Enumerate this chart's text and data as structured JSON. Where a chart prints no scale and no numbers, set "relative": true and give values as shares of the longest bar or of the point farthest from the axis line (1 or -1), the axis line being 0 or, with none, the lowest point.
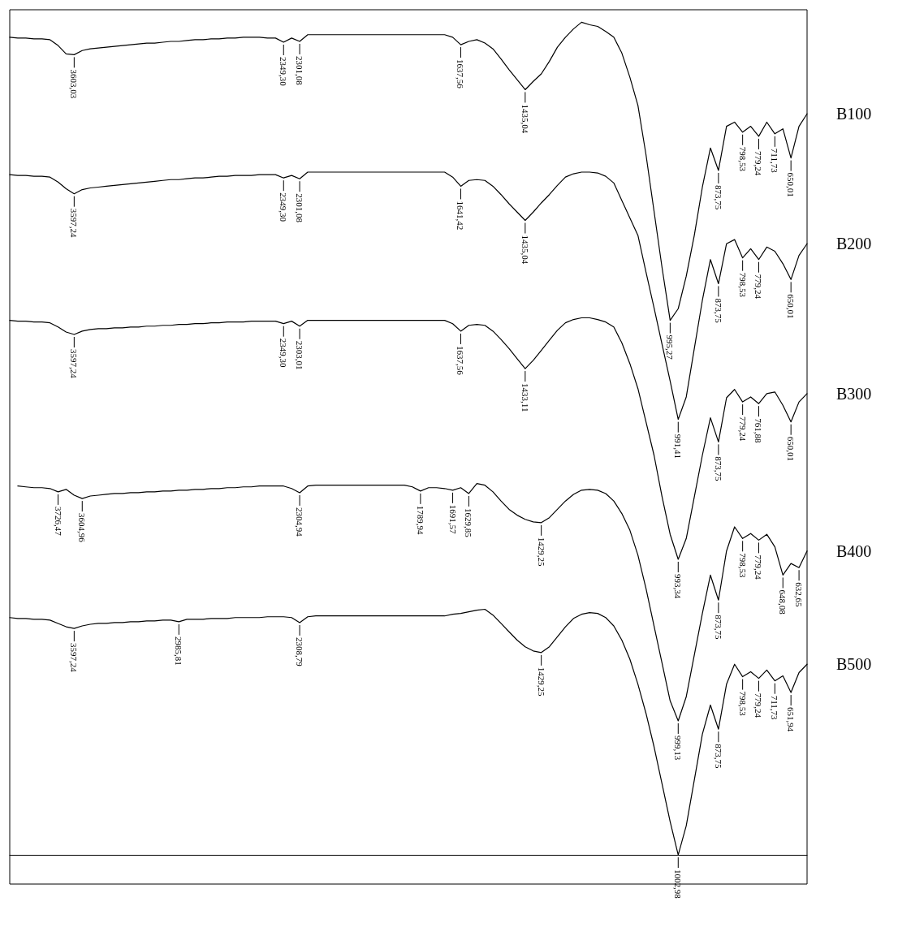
{
  "chart_data": {
    "type": "line",
    "relative": true,
    "tick_labels": false,
    "marker": "none",
    "categories": [
      null,
      null,
      null,
      null,
      null,
      null,
      null,
      null,
      null,
      null,
      null,
      null,
      null,
      null,
      null,
      null,
      null,
      null,
      null,
      null,
      null,
      null,
      null,
      null,
      null,
      null,
      null,
      null,
      null,
      null,
      null,
      null,
      null,
      null,
      null,
      null,
      null,
      null,
      null,
      null,
      null,
      null,
      null,
      null,
      null,
      null,
      null,
      null,
      null,
      null,
      null,
      null,
      null,
      null,
      null,
      null,
      null,
      null,
      null,
      null,
      null,
      null,
      null,
      null,
      null,
      null,
      null,
      null,
      null,
      null,
      null,
      null,
      null,
      null,
      null,
      null,
      null,
      null,
      null,
      null,
      null,
      null,
      null,
      null,
      null,
      null,
      null,
      null,
      null,
      null,
      null,
      null,
      null,
      null,
      null,
      null,
      null,
      null,
      null,
      null
    ],
    "series": [
      {
        "name": "B100",
        "color": "#000000",
        "values": [
          0.982,
          0.981,
          0.981,
          0.98,
          0.98,
          0.979,
          0.972,
          0.962,
          0.961,
          0.966,
          0.968,
          0.969,
          0.97,
          0.971,
          0.972,
          0.973,
          0.974,
          0.975,
          0.975,
          0.976,
          0.977,
          0.977,
          0.978,
          0.979,
          0.979,
          0.98,
          0.98,
          0.981,
          0.981,
          0.982,
          0.982,
          0.982,
          0.981,
          0.981,
          0.976,
          0.981,
          0.977,
          0.985,
          0.985,
          0.985,
          0.985,
          0.985,
          0.985,
          0.985,
          0.985,
          0.985,
          0.985,
          0.985,
          0.985,
          0.985,
          0.985,
          0.985,
          0.985,
          0.985,
          0.985,
          0.982,
          0.973,
          0.977,
          0.979,
          0.975,
          0.968,
          0.956,
          0.943,
          0.931,
          0.919,
          0.929,
          0.938,
          0.953,
          0.97,
          0.982,
          0.992,
          1,
          0.997,
          0.995,
          0.989,
          0.982,
          0.963,
          0.934,
          0.9,
          0.841,
          0.773,
          0.705,
          0.642,
          0.656,
          0.695,
          0.744,
          0.802,
          0.849,
          0.822,
          0.875,
          0.88,
          0.868,
          0.875,
          0.863,
          0.88,
          0.866,
          0.872,
          0.837,
          0.875,
          0.89
        ]
      },
      {
        "name": "B200",
        "color": "#000000",
        "values": [
          0.817,
          0.816,
          0.816,
          0.815,
          0.815,
          0.814,
          0.808,
          0.8,
          0.794,
          0.799,
          0.801,
          0.802,
          0.803,
          0.804,
          0.805,
          0.806,
          0.807,
          0.808,
          0.809,
          0.81,
          0.811,
          0.811,
          0.812,
          0.813,
          0.813,
          0.814,
          0.815,
          0.815,
          0.816,
          0.816,
          0.816,
          0.817,
          0.817,
          0.817,
          0.813,
          0.816,
          0.812,
          0.82,
          0.82,
          0.82,
          0.82,
          0.82,
          0.82,
          0.82,
          0.82,
          0.82,
          0.82,
          0.82,
          0.82,
          0.82,
          0.82,
          0.82,
          0.82,
          0.82,
          0.82,
          0.814,
          0.803,
          0.81,
          0.811,
          0.81,
          0.803,
          0.793,
          0.782,
          0.772,
          0.762,
          0.772,
          0.783,
          0.793,
          0.804,
          0.814,
          0.818,
          0.82,
          0.82,
          0.819,
          0.815,
          0.807,
          0.786,
          0.765,
          0.744,
          0.7,
          0.657,
          0.613,
          0.569,
          0.523,
          0.55,
          0.608,
          0.666,
          0.715,
          0.686,
          0.734,
          0.739,
          0.717,
          0.728,
          0.715,
          0.73,
          0.725,
          0.71,
          0.691,
          0.72,
          0.734
        ]
      },
      {
        "name": "B300",
        "color": "#000000",
        "values": [
          0.642,
          0.641,
          0.641,
          0.64,
          0.64,
          0.639,
          0.634,
          0.628,
          0.625,
          0.629,
          0.631,
          0.632,
          0.632,
          0.633,
          0.633,
          0.634,
          0.634,
          0.635,
          0.635,
          0.636,
          0.636,
          0.637,
          0.637,
          0.638,
          0.638,
          0.639,
          0.639,
          0.64,
          0.64,
          0.64,
          0.641,
          0.641,
          0.641,
          0.641,
          0.638,
          0.641,
          0.635,
          0.642,
          0.642,
          0.642,
          0.642,
          0.642,
          0.642,
          0.642,
          0.642,
          0.642,
          0.642,
          0.642,
          0.642,
          0.642,
          0.642,
          0.642,
          0.642,
          0.642,
          0.642,
          0.638,
          0.629,
          0.636,
          0.637,
          0.636,
          0.629,
          0.619,
          0.608,
          0.596,
          0.584,
          0.594,
          0.606,
          0.618,
          0.63,
          0.639,
          0.643,
          0.645,
          0.645,
          0.643,
          0.64,
          0.634,
          0.615,
          0.59,
          0.56,
          0.52,
          0.48,
          0.43,
          0.385,
          0.355,
          0.38,
          0.43,
          0.48,
          0.525,
          0.496,
          0.549,
          0.559,
          0.544,
          0.55,
          0.542,
          0.554,
          0.556,
          0.54,
          0.52,
          0.544,
          0.554
        ]
      },
      {
        "name": "B400",
        "color": "#000000",
        "values": [
          null,
          0.443,
          0.442,
          0.441,
          0.441,
          0.44,
          0.436,
          0.439,
          0.432,
          0.428,
          0.431,
          0.432,
          0.433,
          0.434,
          0.434,
          0.435,
          0.435,
          0.436,
          0.436,
          0.437,
          0.437,
          0.438,
          0.438,
          0.439,
          0.439,
          0.44,
          0.44,
          0.441,
          0.441,
          0.442,
          0.442,
          0.443,
          0.443,
          0.443,
          0.443,
          0.44,
          0.435,
          0.443,
          0.444,
          0.444,
          0.444,
          0.444,
          0.444,
          0.444,
          0.444,
          0.444,
          0.444,
          0.444,
          0.444,
          0.444,
          0.442,
          0.437,
          0.441,
          0.441,
          0.44,
          0.438,
          0.441,
          0.434,
          0.446,
          0.444,
          0.436,
          0.425,
          0.415,
          0.408,
          0.403,
          0.4,
          0.399,
          0.405,
          0.415,
          0.425,
          0.433,
          0.438,
          0.439,
          0.438,
          0.434,
          0.425,
          0.41,
          0.39,
          0.36,
          0.32,
          0.275,
          0.23,
          0.185,
          0.161,
          0.19,
          0.24,
          0.29,
          0.336,
          0.306,
          0.365,
          0.394,
          0.38,
          0.386,
          0.378,
          0.385,
          0.37,
          0.336,
          0.35,
          0.345,
          0.365
        ]
      },
      {
        "name": "B500",
        "color": "#000000",
        "values": [
          0.285,
          0.284,
          0.284,
          0.283,
          0.283,
          0.282,
          0.278,
          0.274,
          0.272,
          0.275,
          0.277,
          0.278,
          0.278,
          0.279,
          0.279,
          0.28,
          0.28,
          0.281,
          0.281,
          0.282,
          0.282,
          0.28,
          0.283,
          0.283,
          0.283,
          0.284,
          0.284,
          0.284,
          0.285,
          0.285,
          0.285,
          0.285,
          0.286,
          0.286,
          0.286,
          0.285,
          0.279,
          0.286,
          0.287,
          0.287,
          0.287,
          0.287,
          0.287,
          0.287,
          0.287,
          0.287,
          0.287,
          0.287,
          0.287,
          0.287,
          0.287,
          0.287,
          0.287,
          0.287,
          0.287,
          0.289,
          0.29,
          0.292,
          0.294,
          0.295,
          0.288,
          0.278,
          0.268,
          0.258,
          0.25,
          0.245,
          0.243,
          0.25,
          0.262,
          0.274,
          0.284,
          0.289,
          0.291,
          0.29,
          0.285,
          0.275,
          0.258,
          0.235,
          0.205,
          0.17,
          0.13,
          0.085,
          0.04,
          0,
          0.035,
          0.09,
          0.145,
          0.18,
          0.151,
          0.205,
          0.229,
          0.214,
          0.22,
          0.212,
          0.222,
          0.209,
          0.215,
          0.195,
          0.219,
          0.229
        ]
      }
    ],
    "annotations": [
      {
        "text": "3603,03",
        "y": 0.961
      },
      {
        "text": "2349,30",
        "y": 0.976
      },
      {
        "text": "2301,08",
        "y": 0.977
      },
      {
        "text": "1637,56",
        "y": 0.973
      },
      {
        "text": "1435,04",
        "y": 0.919
      },
      {
        "text": "995,27",
        "y": 0.642
      },
      {
        "text": "873,75",
        "y": 0.822
      },
      {
        "text": "798,53",
        "y": 0.868
      },
      {
        "text": "779,24",
        "y": 0.863
      },
      {
        "text": "711,73",
        "y": 0.866
      },
      {
        "text": "650,01",
        "y": 0.837
      },
      {
        "text": "3597,24",
        "y": 0.794
      },
      {
        "text": "2349,30",
        "y": 0.813
      },
      {
        "text": "2301,08",
        "y": 0.812
      },
      {
        "text": "1641,42",
        "y": 0.803
      },
      {
        "text": "1435,04",
        "y": 0.762
      },
      {
        "text": "991,41",
        "y": 0.523
      },
      {
        "text": "873,75",
        "y": 0.686
      },
      {
        "text": "798,53",
        "y": 0.717
      },
      {
        "text": "779,24",
        "y": 0.715
      },
      {
        "text": "650,01",
        "y": 0.691
      },
      {
        "text": "3597,24",
        "y": 0.625
      },
      {
        "text": "2349,30",
        "y": 0.638
      },
      {
        "text": "2303,01",
        "y": 0.635
      },
      {
        "text": "1637,56",
        "y": 0.629
      },
      {
        "text": "1433,11",
        "y": 0.584
      },
      {
        "text": "993,34",
        "y": 0.355
      },
      {
        "text": "873,75",
        "y": 0.496
      },
      {
        "text": "779,24",
        "y": 0.544
      },
      {
        "text": "761,88",
        "y": 0.542
      },
      {
        "text": "650,01",
        "y": 0.52
      },
      {
        "text": "3726,47",
        "y": 0.436
      },
      {
        "text": "3604,96",
        "y": 0.428
      },
      {
        "text": "2304,94",
        "y": 0.435
      },
      {
        "text": "1789,94",
        "y": 0.437
      },
      {
        "text": "1691,57",
        "y": 0.438
      },
      {
        "text": "1629,85",
        "y": 0.434
      },
      {
        "text": "1429,25",
        "y": 0.399
      },
      {
        "text": "999,13",
        "y": 0.161
      },
      {
        "text": "873,75",
        "y": 0.306
      },
      {
        "text": "798,53",
        "y": 0.38
      },
      {
        "text": "779,24",
        "y": 0.378
      },
      {
        "text": "648,08",
        "y": 0.336
      },
      {
        "text": "632,65",
        "y": 0.345
      },
      {
        "text": "3597,24",
        "y": 0.272
      },
      {
        "text": "2985,81",
        "y": 0.28
      },
      {
        "text": "2308,79",
        "y": 0.279
      },
      {
        "text": "1429,25",
        "y": 0.243
      },
      {
        "text": "1002,98",
        "y": 0
      },
      {
        "text": "873,75",
        "y": 0.151
      },
      {
        "text": "798,53",
        "y": 0.214
      },
      {
        "text": "779,24",
        "y": 0.212
      },
      {
        "text": "711,73",
        "y": 0.209
      },
      {
        "text": "651,94",
        "y": 0.195
      }
    ]
  }
}
